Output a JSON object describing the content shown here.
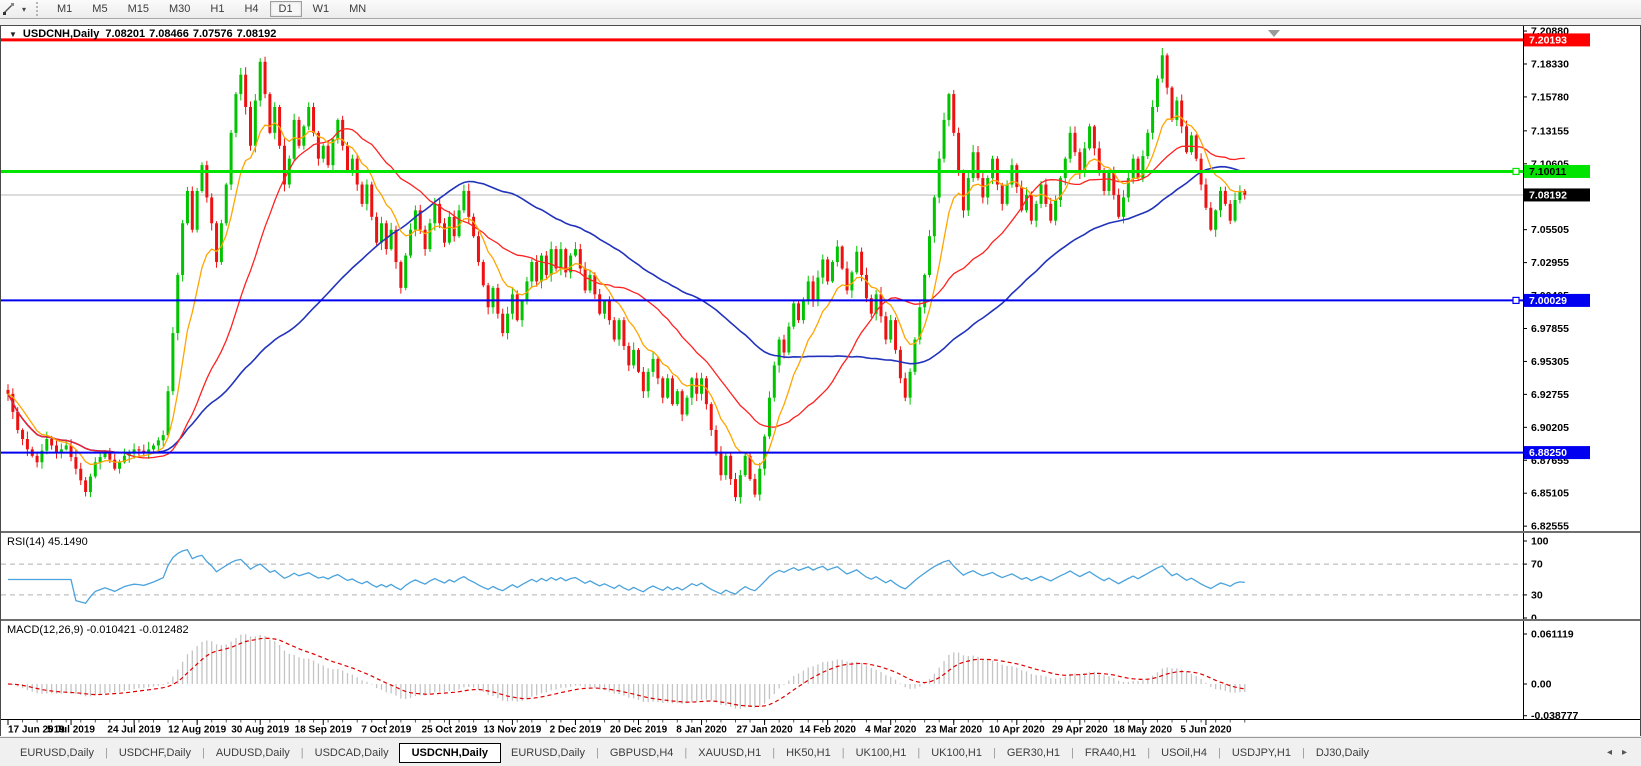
{
  "icons": {
    "caret_down": "▾",
    "collapse": "▼",
    "scroll_left": "◂",
    "scroll_right": "▸",
    "end_marker": "▼"
  },
  "toolbar": {
    "timeframes": [
      "M1",
      "M5",
      "M15",
      "M30",
      "H1",
      "H4",
      "D1",
      "W1",
      "MN"
    ],
    "active_timeframe": "D1"
  },
  "chart": {
    "title": {
      "symbol": "USDCNH,Daily",
      "open": "7.08201",
      "high": "7.08466",
      "low": "7.07576",
      "close": "7.08192"
    },
    "y_axis_labels": [
      "7.20880",
      "7.18330",
      "7.15780",
      "7.13155",
      "7.10605",
      "7.08055",
      "7.05505",
      "7.02955",
      "7.00405",
      "6.97855",
      "6.95305",
      "6.92755",
      "6.90205",
      "6.87655",
      "6.85105",
      "6.82555"
    ],
    "h_lines": [
      {
        "price": 7.20193,
        "label": "7.20193",
        "color": "#FF0000",
        "width": 3,
        "badge_fg": "#FFFFFF",
        "handle": false
      },
      {
        "price": 7.10011,
        "label": "7.10011",
        "color": "#00E400",
        "width": 3,
        "badge_fg": "#000000",
        "handle": true
      },
      {
        "price": 7.00029,
        "label": "7.00029",
        "color": "#0000F0",
        "width": 2,
        "badge_fg": "#FFFFFF",
        "handle": true
      },
      {
        "price": 6.8825,
        "label": "6.88250",
        "color": "#0000F0",
        "width": 2,
        "badge_fg": "#FFFFFF",
        "handle": false
      }
    ],
    "current_price": {
      "value": 7.08192,
      "label": "7.08192",
      "line_color": "#B8B8B8",
      "badge_bg": "#000000",
      "badge_fg": "#FFFFFF"
    },
    "x_axis_dates": [
      "17 Jun 2019",
      "5 Jul 2019",
      "24 Jul 2019",
      "12 Aug 2019",
      "30 Aug 2019",
      "18 Sep 2019",
      "7 Oct 2019",
      "25 Oct 2019",
      "13 Nov 2019",
      "2 Dec 2019",
      "20 Dec 2019",
      "8 Jan 2020",
      "27 Jan 2020",
      "14 Feb 2020",
      "4 Mar 2020",
      "23 Mar 2020",
      "10 Apr 2020",
      "29 Apr 2020",
      "18 May 2020",
      "5 Jun 2020"
    ]
  },
  "rsi": {
    "label": "RSI(14) 45.1490",
    "scale_labels": [
      "100",
      "70",
      "30",
      "0"
    ],
    "dashed_levels": [
      70,
      30
    ],
    "period": 14
  },
  "macd": {
    "label": "MACD(12,26,9) -0.010421 -0.012482",
    "scale_labels": [
      "0.061119",
      "0.00",
      "-0.038777"
    ],
    "fast": 12,
    "slow": 26,
    "signal": 9
  },
  "tabs": {
    "items": [
      "EURUSD,Daily",
      "USDCHF,Daily",
      "AUDUSD,Daily",
      "USDCAD,Daily",
      "USDCNH,Daily",
      "EURUSD,Daily",
      "GBPUSD,H4",
      "XAUUSD,H1",
      "HK50,H1",
      "UK100,H1",
      "UK100,H1",
      "GER30,H1",
      "FRA40,H1",
      "USOil,H4",
      "USDJPY,H1",
      "DJ30,Daily"
    ],
    "active_index": 4
  },
  "colors": {
    "up": "#00C400",
    "down": "#EE1111",
    "ma_fast": "#FFA500",
    "ma_mid": "#FF2222",
    "ma_slow": "#2233BB",
    "rsi_line": "#4AA3DC",
    "macd_hist": "#C4C4C4",
    "macd_signal": "#E00000",
    "axis_text": "#000000",
    "dashed_level": "#B0B0B0",
    "end_marker": "#9A9A9A"
  },
  "chart_data": {
    "type": "candlestick",
    "symbol": "USDCNH",
    "timeframe": "Daily",
    "price_axis": {
      "top": 7.2127,
      "bottom": 6.8218
    },
    "rsi_axis": {
      "top": 110.4,
      "bottom": -1.3
    },
    "macd_axis": {
      "top": 0.077,
      "bottom": -0.0428
    },
    "ma_periods": {
      "fast_ema": 10,
      "mid_sma": 25,
      "slow_sma": 60
    },
    "date_bar_step": 13,
    "closes": [
      6.928,
      6.914,
      6.9,
      6.893,
      6.885,
      6.88,
      6.875,
      6.884,
      6.893,
      6.888,
      6.882,
      6.885,
      6.888,
      6.879,
      6.87,
      6.861,
      6.852,
      6.864,
      6.875,
      6.879,
      6.883,
      6.877,
      6.87,
      6.875,
      6.88,
      6.883,
      6.885,
      6.884,
      6.882,
      6.885,
      6.888,
      6.892,
      6.896,
      6.93,
      6.975,
      7.02,
      7.06,
      7.085,
      7.055,
      7.085,
      7.105,
      7.08,
      7.06,
      7.03,
      7.06,
      7.09,
      7.13,
      7.16,
      7.175,
      7.15,
      7.12,
      7.155,
      7.185,
      7.16,
      7.13,
      7.15,
      7.12,
      7.09,
      7.11,
      7.14,
      7.12,
      7.135,
      7.15,
      7.13,
      7.11,
      7.12,
      7.105,
      7.125,
      7.14,
      7.12,
      7.1,
      7.11,
      7.09,
      7.075,
      7.09,
      7.065,
      7.045,
      7.06,
      7.04,
      7.055,
      7.03,
      7.01,
      7.035,
      7.055,
      7.07,
      7.055,
      7.04,
      7.06,
      7.075,
      7.06,
      7.045,
      7.065,
      7.05,
      7.07,
      7.085,
      7.065,
      7.05,
      7.03,
      7.012,
      6.995,
      7.01,
      6.99,
      6.975,
      6.99,
      7.005,
      6.985,
      7.0,
      7.015,
      7.03,
      7.015,
      7.035,
      7.02,
      7.04,
      7.025,
      7.04,
      7.022,
      7.035,
      7.04,
      7.025,
      7.008,
      7.02,
      7.005,
      6.99,
      7.0,
      6.985,
      6.97,
      6.985,
      6.965,
      6.95,
      6.962,
      6.945,
      6.93,
      6.945,
      6.955,
      6.94,
      6.925,
      6.94,
      6.92,
      6.93,
      6.912,
      6.925,
      6.94,
      6.928,
      6.94,
      6.92,
      6.9,
      6.882,
      6.865,
      6.88,
      6.862,
      6.848,
      6.865,
      6.88,
      6.862,
      6.85,
      6.87,
      6.895,
      6.925,
      6.95,
      6.97,
      6.96,
      6.98,
      6.998,
      6.985,
      7.0,
      7.015,
      7.0,
      7.018,
      7.032,
      7.015,
      7.03,
      7.042,
      7.025,
      7.008,
      7.022,
      7.038,
      7.02,
      7.002,
      6.99,
      7.005,
      6.988,
      6.97,
      6.985,
      6.962,
      6.94,
      6.925,
      6.945,
      6.97,
      6.995,
      7.02,
      7.05,
      7.08,
      7.11,
      7.14,
      7.16,
      7.13,
      7.1,
      7.07,
      7.095,
      7.115,
      7.095,
      7.08,
      7.095,
      7.11,
      7.09,
      7.075,
      7.09,
      7.105,
      7.088,
      7.07,
      7.082,
      7.062,
      7.075,
      7.09,
      7.075,
      7.062,
      7.078,
      7.095,
      7.11,
      7.13,
      7.115,
      7.1,
      7.118,
      7.135,
      7.118,
      7.1,
      7.085,
      7.1,
      7.082,
      7.065,
      7.08,
      7.095,
      7.11,
      7.095,
      7.112,
      7.13,
      7.15,
      7.172,
      7.19,
      7.165,
      7.14,
      7.155,
      7.135,
      7.115,
      7.128,
      7.11,
      7.09,
      7.072,
      7.055,
      7.07,
      7.085,
      7.075,
      7.062,
      7.078,
      7.085,
      7.082
    ]
  }
}
